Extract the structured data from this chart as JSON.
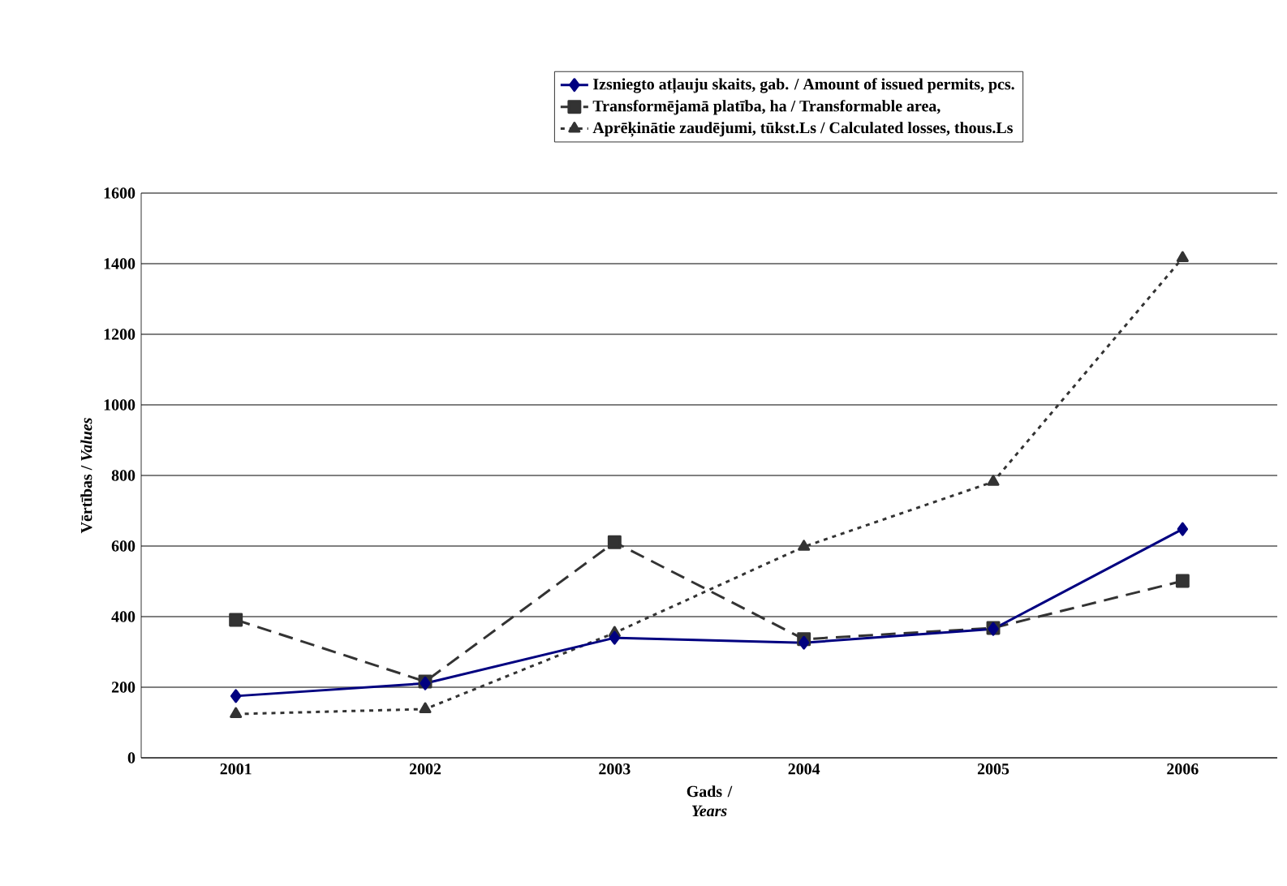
{
  "chart_data": {
    "type": "line",
    "xlabel": "Gads / *Years*",
    "ylabel": "Vērtības / *Values*",
    "categories": [
      "2001",
      "2002",
      "2003",
      "2004",
      "2005",
      "2006"
    ],
    "series": [
      {
        "name": "Izsniegto atļauju skaits, gab. / Amount of issued permits, pcs.",
        "color": "#000080",
        "marker": "diamond",
        "line_style": "solid",
        "values": [
          175,
          211,
          340,
          326,
          365,
          648
        ]
      },
      {
        "name": "Transformējamā platība, ha / Transformable area,",
        "color": "#333333",
        "marker": "square",
        "line_style": "dashed",
        "values": [
          391,
          216,
          611,
          336,
          368,
          501
        ]
      },
      {
        "name": "Aprēķinātie zaudējumi, tūkst.Ls / Calculated losses, thous.Ls",
        "color": "#333333",
        "marker": "triangle",
        "line_style": "dotted",
        "values": [
          124,
          138,
          354,
          598,
          782,
          1416
        ]
      }
    ],
    "ylim": [
      0,
      1600
    ],
    "yticks": [
      0,
      200,
      400,
      600,
      800,
      1000,
      1200,
      1400,
      1600
    ],
    "grid": "y",
    "legend": "top"
  }
}
